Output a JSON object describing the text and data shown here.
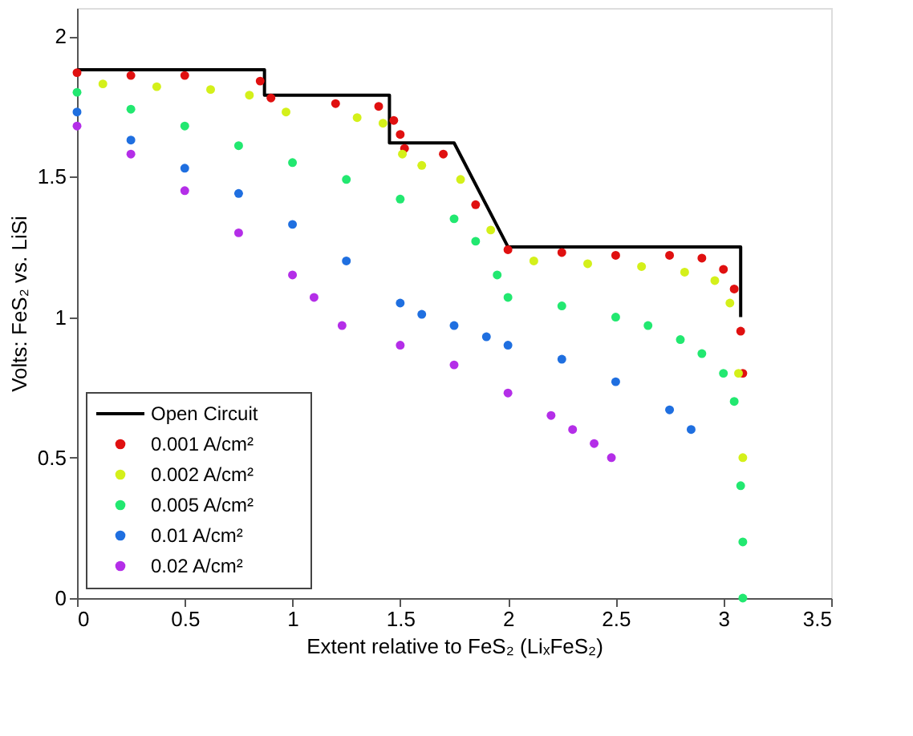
{
  "chart_data": {
    "type": "line",
    "xlabel": "Extent relative to FeS₂ (LiₓFeS₂)",
    "ylabel": "Volts: FeS₂ vs. LiSi",
    "xlim": [
      0,
      3.5
    ],
    "ylim": [
      0,
      2.1
    ],
    "xticks": [
      0,
      0.5,
      1,
      1.5,
      2,
      2.5,
      3,
      3.5
    ],
    "yticks": [
      0,
      0.5,
      1,
      1.5,
      2
    ],
    "grid": false,
    "legend": "bottom left",
    "series": [
      {
        "name": "Open Circuit",
        "color": "#000000",
        "marker": "none",
        "x": [
          0,
          0.87,
          0.87,
          1.45,
          1.45,
          1.75,
          2.0,
          3.08,
          3.08
        ],
        "values": [
          1.88,
          1.88,
          1.79,
          1.79,
          1.62,
          1.62,
          1.25,
          1.25,
          1.0
        ]
      },
      {
        "name": "0.001 A/cm²",
        "type": "scatter",
        "color": "#e01010",
        "marker": "circle",
        "x": [
          0,
          0.25,
          0.5,
          0.85,
          0.9,
          1.2,
          1.4,
          1.47,
          1.5,
          1.52,
          1.7,
          1.85,
          2.0,
          2.25,
          2.5,
          2.75,
          2.9,
          3.0,
          3.05,
          3.08,
          3.09
        ],
        "values": [
          1.87,
          1.86,
          1.86,
          1.84,
          1.78,
          1.76,
          1.75,
          1.7,
          1.65,
          1.6,
          1.58,
          1.4,
          1.24,
          1.23,
          1.22,
          1.22,
          1.21,
          1.17,
          1.1,
          0.95,
          0.8
        ]
      },
      {
        "name": "0.002 A/cm²",
        "type": "scatter",
        "color": "#d4f01a",
        "marker": "circle",
        "x": [
          0.12,
          0.37,
          0.62,
          0.8,
          0.97,
          1.3,
          1.42,
          1.51,
          1.6,
          1.78,
          1.92,
          2.12,
          2.37,
          2.62,
          2.82,
          2.96,
          3.03,
          3.07,
          3.09
        ],
        "values": [
          1.83,
          1.82,
          1.81,
          1.79,
          1.73,
          1.71,
          1.69,
          1.58,
          1.54,
          1.49,
          1.31,
          1.2,
          1.19,
          1.18,
          1.16,
          1.13,
          1.05,
          0.8,
          0.5
        ]
      },
      {
        "name": "0.005 A/cm²",
        "type": "scatter",
        "color": "#22e870",
        "marker": "circle",
        "x": [
          0,
          0.25,
          0.5,
          0.75,
          1.0,
          1.25,
          1.5,
          1.75,
          1.85,
          1.95,
          2.0,
          2.25,
          2.5,
          2.65,
          2.8,
          2.9,
          3.0,
          3.05,
          3.08,
          3.09,
          3.09
        ],
        "values": [
          1.8,
          1.74,
          1.68,
          1.61,
          1.55,
          1.49,
          1.42,
          1.35,
          1.27,
          1.15,
          1.07,
          1.04,
          1.0,
          0.97,
          0.92,
          0.87,
          0.8,
          0.7,
          0.4,
          0.2,
          0.0
        ]
      },
      {
        "name": "0.01 A/cm²",
        "type": "scatter",
        "color": "#1f6fe0",
        "marker": "circle",
        "x": [
          0,
          0.25,
          0.5,
          0.75,
          1.0,
          1.25,
          1.5,
          1.6,
          1.75,
          1.9,
          2.0,
          2.25,
          2.5,
          2.75,
          2.85
        ],
        "values": [
          1.73,
          1.63,
          1.53,
          1.44,
          1.33,
          1.2,
          1.05,
          1.01,
          0.97,
          0.93,
          0.9,
          0.85,
          0.77,
          0.67,
          0.6
        ]
      },
      {
        "name": "0.02 A/cm²",
        "type": "scatter",
        "color": "#b42ee8",
        "marker": "circle",
        "x": [
          0,
          0.25,
          0.5,
          0.75,
          1.0,
          1.1,
          1.23,
          1.5,
          1.75,
          2.0,
          2.2,
          2.3,
          2.4,
          2.48
        ],
        "values": [
          1.68,
          1.58,
          1.45,
          1.3,
          1.15,
          1.07,
          0.97,
          0.9,
          0.83,
          0.73,
          0.65,
          0.6,
          0.55,
          0.5
        ]
      }
    ]
  }
}
